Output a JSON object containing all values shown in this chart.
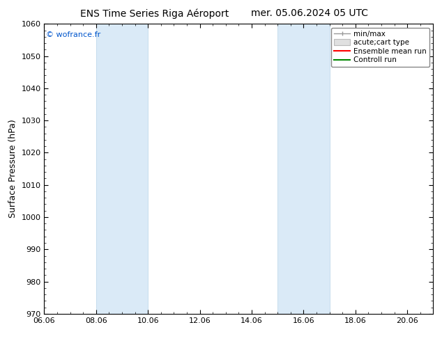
{
  "title_left": "ENS Time Series Riga Aéroport",
  "title_right": "mer. 05.06.2024 05 UTC",
  "ylabel": "Surface Pressure (hPa)",
  "ylim": [
    970,
    1060
  ],
  "yticks": [
    970,
    980,
    990,
    1000,
    1010,
    1020,
    1030,
    1040,
    1050,
    1060
  ],
  "xlim": [
    0,
    15
  ],
  "xtick_labels": [
    "06.06",
    "08.06",
    "10.06",
    "12.06",
    "14.06",
    "16.06",
    "18.06",
    "20.06"
  ],
  "xtick_positions": [
    0,
    2,
    4,
    6,
    8,
    10,
    12,
    14
  ],
  "blue_bands": [
    {
      "start": 2.0,
      "end": 4.0
    },
    {
      "start": 9.0,
      "end": 11.0
    }
  ],
  "band_color": "#daeaf7",
  "band_line_color": "#b8d4e8",
  "background_color": "#ffffff",
  "copyright_text": "© wofrance.fr",
  "copyright_color": "#0055cc",
  "legend_labels": [
    "min/max",
    "acute;cart type",
    "Ensemble mean run",
    "Controll run"
  ],
  "legend_colors": [
    "#999999",
    "#cccccc",
    "#ff0000",
    "#008800"
  ],
  "title_fontsize": 10,
  "axis_label_fontsize": 9,
  "tick_fontsize": 8,
  "legend_fontsize": 7.5
}
